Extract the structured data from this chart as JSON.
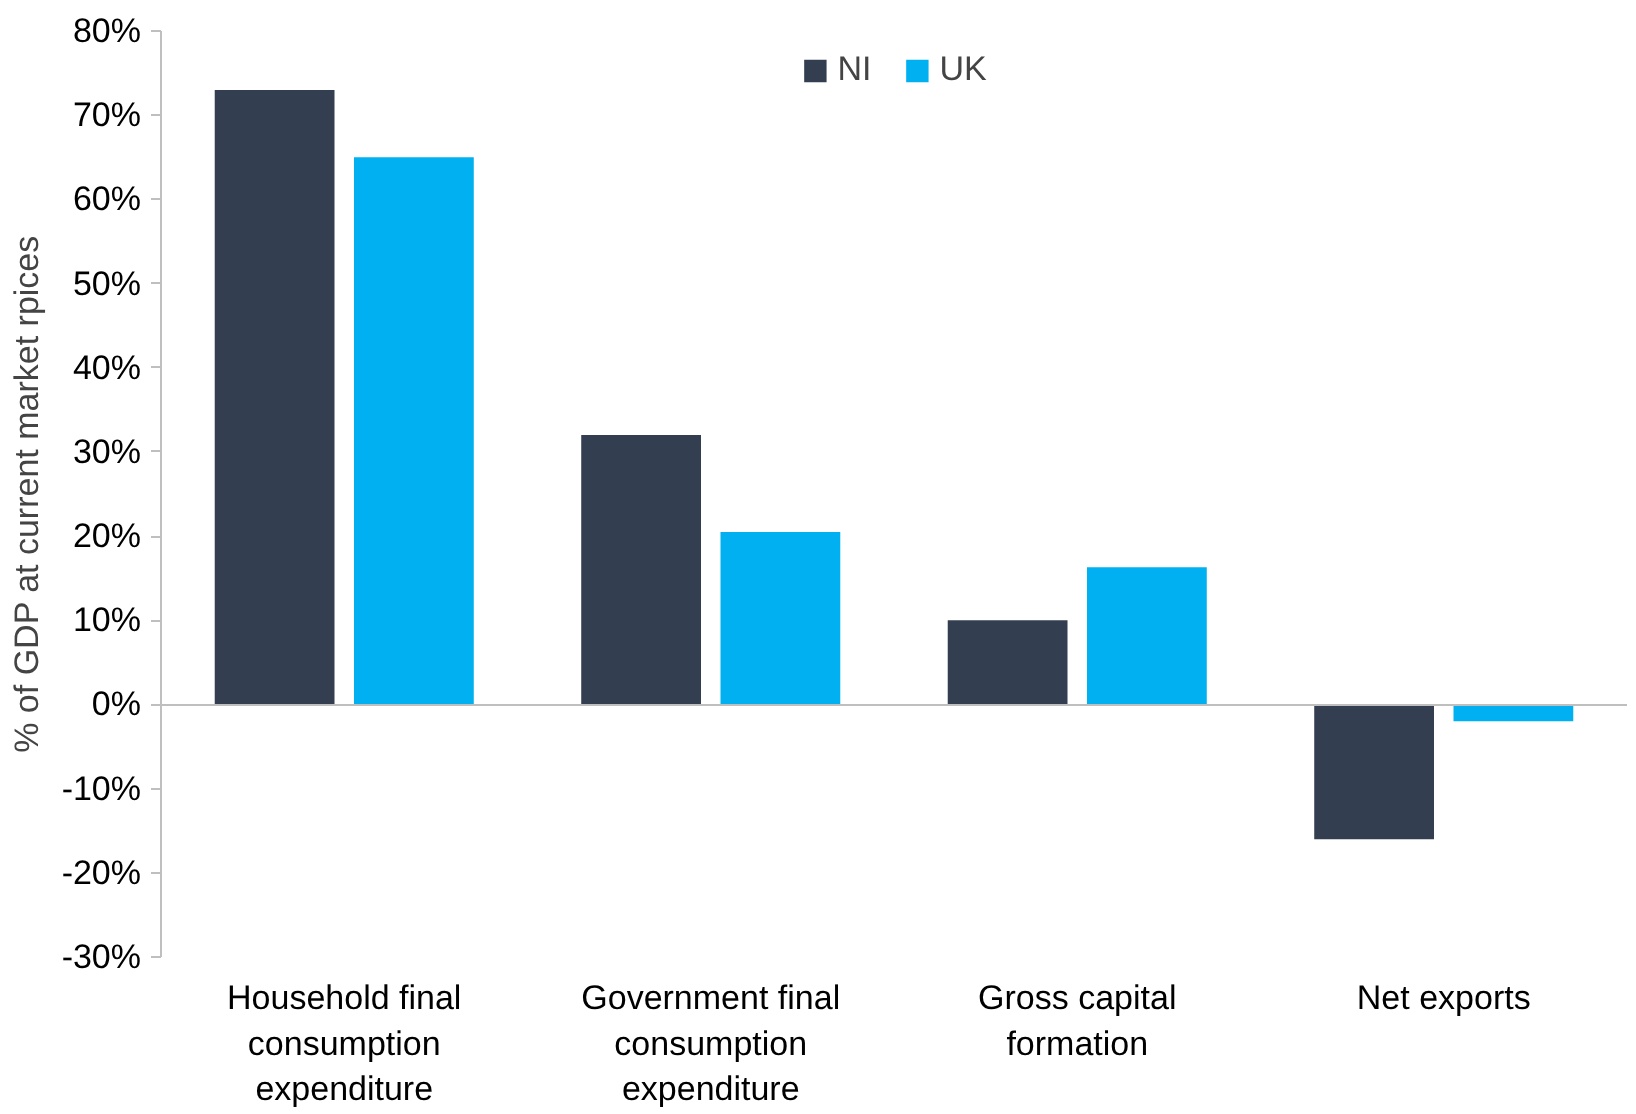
{
  "chart_data": {
    "type": "bar",
    "ylabel": "% of GDP at current market rpices",
    "categories": [
      "Household final consumption expenditure",
      "Government final consumption expenditure",
      "Gross capital formation",
      "Net exports"
    ],
    "series": [
      {
        "name": "NI",
        "color": "#333f50",
        "values": [
          73,
          32,
          10,
          -16
        ]
      },
      {
        "name": "UK",
        "color": "#00b0f0",
        "values": [
          65,
          20.5,
          16.3,
          -2
        ]
      }
    ],
    "ylim": [
      -30,
      80
    ],
    "yticks": [
      {
        "value": -30,
        "label": "-30%"
      },
      {
        "value": -20,
        "label": "-20%"
      },
      {
        "value": -10,
        "label": "-10%"
      },
      {
        "value": 0,
        "label": "0%"
      },
      {
        "value": 10,
        "label": "10%"
      },
      {
        "value": 20,
        "label": "20%"
      },
      {
        "value": 30,
        "label": "30%"
      },
      {
        "value": 40,
        "label": "40%"
      },
      {
        "value": 50,
        "label": "50%"
      },
      {
        "value": 60,
        "label": "60%"
      },
      {
        "value": 70,
        "label": "70%"
      },
      {
        "value": 80,
        "label": "80%"
      }
    ],
    "legend": "top"
  }
}
